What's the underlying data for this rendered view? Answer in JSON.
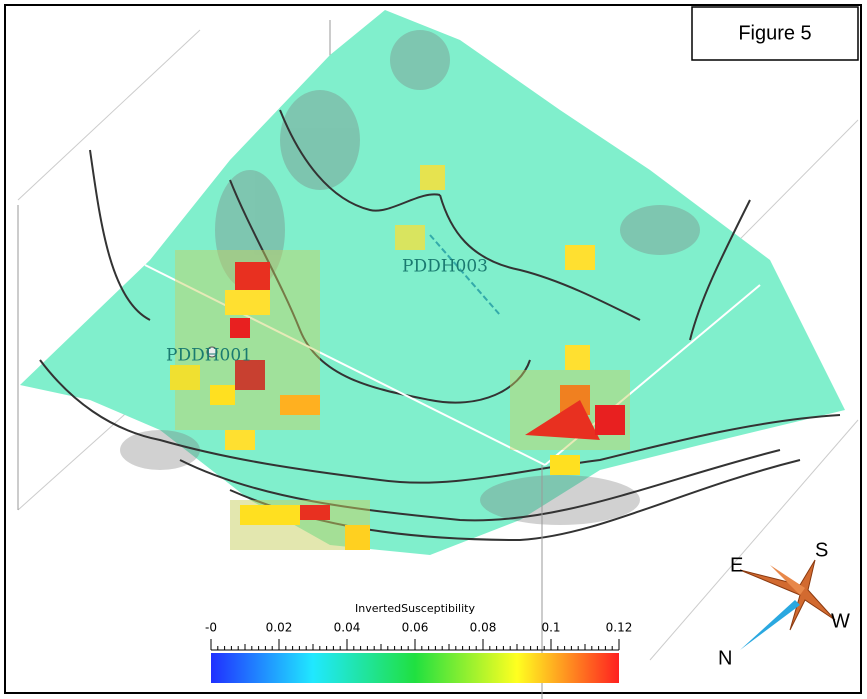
{
  "figure_label": "Figure 5",
  "wells": [
    "PDDH003",
    "PDDH001"
  ],
  "colorbar": {
    "title": "InvertedSusceptibility",
    "lim": [
      0,
      0.12
    ],
    "ticks": [
      {
        "value": 0,
        "label": "-0"
      },
      0.02,
      0.04,
      0.06,
      0.08,
      0.1,
      0.12
    ],
    "colors": [
      "#2030ff",
      "#20e8ff",
      "#20e040",
      "#ffff20",
      "#ff2020"
    ]
  },
  "compass": {
    "east": "E",
    "south": "S",
    "west": "W",
    "north": "N"
  }
}
